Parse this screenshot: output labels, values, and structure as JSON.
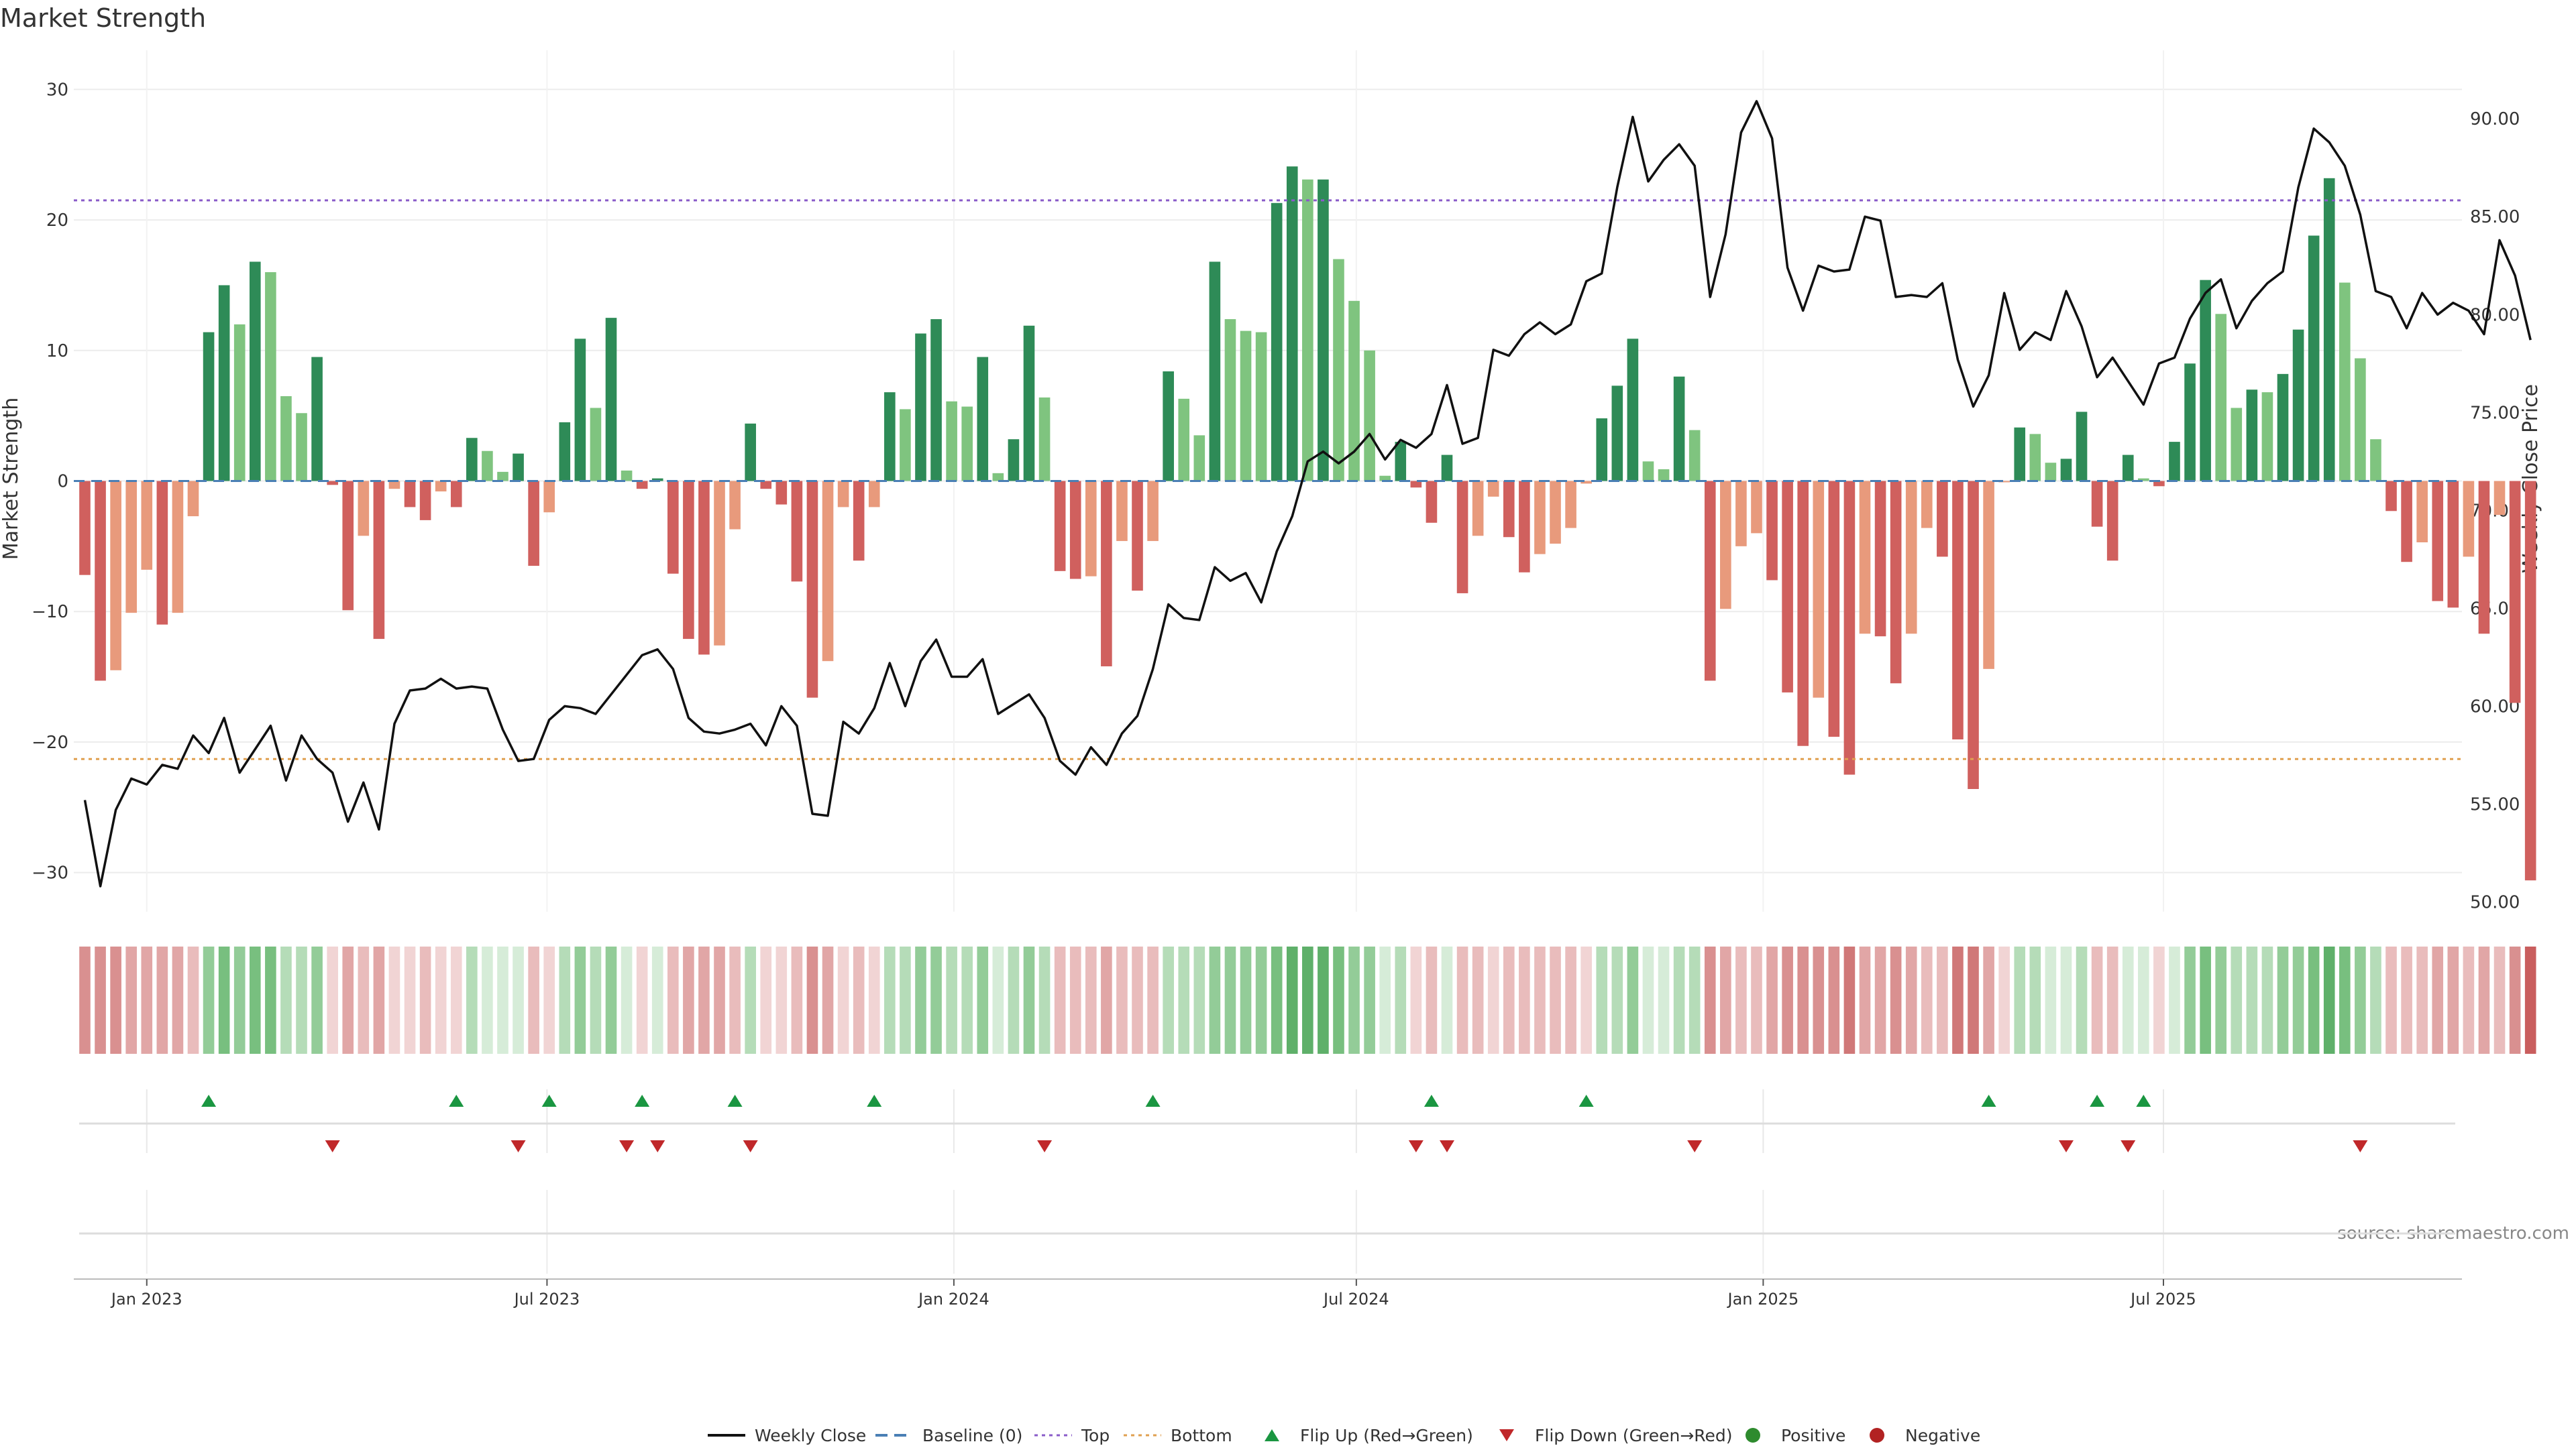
{
  "page": {
    "title": "Market Strength",
    "source_label": "source: sharemaestro.com"
  },
  "chart_data": {
    "type": "bar",
    "title": "Market Strength",
    "ylabel_left": "Market Strength",
    "ylabel_right": "Weekly Close Price",
    "y_left_lim": [
      -33,
      33
    ],
    "y_left_ticks": [
      30,
      20,
      10,
      0,
      -10,
      -20,
      -30
    ],
    "y_left_tick_labels": [
      "30",
      "20",
      "10",
      "0",
      "−10",
      "−20",
      "−30"
    ],
    "y_right_lim": [
      49.5,
      93.5
    ],
    "y_right_ticks": [
      90,
      85,
      80,
      75,
      70,
      65,
      60,
      55,
      50
    ],
    "y_right_tick_labels": [
      "90.00",
      "85.00",
      "80.00",
      "75.00",
      "70.00",
      "65.00",
      "60.00",
      "55.00",
      "50.00"
    ],
    "x_lim": [
      "2022-11-29",
      "2025-11-13"
    ],
    "x_ticks": [
      "2023-01-01",
      "2023-07-01",
      "2024-01-01",
      "2024-07-01",
      "2025-01-01",
      "2025-07-01"
    ],
    "x_tick_labels": [
      "Jan 2023",
      "Jul 2023",
      "Jan 2024",
      "Jul 2024",
      "Jan 2025",
      "Jul 2025"
    ],
    "start_week": "2022-12-04",
    "week_interval_days": 7,
    "top_line": 21.5,
    "bottom_line": -21.3,
    "grid": true,
    "legend_position": "bottom-center",
    "strength": [
      -7.2,
      -15.3,
      -14.5,
      -10.1,
      -6.8,
      -11.0,
      -10.1,
      -2.7,
      11.4,
      15.0,
      12.0,
      16.8,
      16.0,
      6.5,
      5.2,
      9.5,
      -0.3,
      -9.9,
      -4.2,
      -12.1,
      -0.6,
      -2.0,
      -3.0,
      -0.8,
      -2.0,
      3.3,
      2.3,
      0.7,
      2.1,
      -6.5,
      -2.4,
      4.5,
      10.9,
      5.6,
      12.5,
      0.8,
      -0.6,
      0.2,
      -7.1,
      -12.1,
      -13.3,
      -12.6,
      -3.7,
      4.4,
      -0.6,
      -1.8,
      -7.7,
      -16.6,
      -13.8,
      -2.0,
      -6.1,
      -2.0,
      6.8,
      5.5,
      11.3,
      12.4,
      6.1,
      5.7,
      9.5,
      0.6,
      3.2,
      11.9,
      6.4,
      -6.9,
      -7.5,
      -7.3,
      -14.2,
      -4.6,
      -8.4,
      -4.6,
      8.4,
      6.3,
      3.5,
      16.8,
      12.4,
      11.5,
      11.4,
      21.3,
      24.1,
      23.1,
      23.1,
      17.0,
      13.8,
      10.0,
      0.4,
      3.0,
      -0.5,
      -3.2,
      2.0,
      -8.6,
      -4.2,
      -1.2,
      -4.3,
      -7.0,
      -5.6,
      -4.8,
      -3.6,
      -0.2,
      4.8,
      7.3,
      10.9,
      1.5,
      0.9,
      8.0,
      3.9,
      -15.3,
      -9.8,
      -5.0,
      -4.0,
      -7.6,
      -16.2,
      -20.3,
      -16.6,
      -19.6,
      -22.5,
      -11.7,
      -11.9,
      -15.5,
      -11.7,
      -3.6,
      -5.8,
      -19.8,
      -23.6,
      -14.4,
      -0.1,
      4.1,
      3.6,
      1.4,
      1.7,
      5.3,
      -3.5,
      -6.1,
      2.0,
      0.2,
      -0.4,
      3.0,
      9.0,
      15.4,
      12.8,
      5.6,
      7.0,
      6.8,
      8.2,
      11.6,
      18.8,
      23.2,
      15.2,
      9.4,
      3.2,
      -2.3,
      -6.2,
      -4.7,
      -9.2,
      -9.7,
      -5.8,
      -11.7,
      -2.6,
      -17.0,
      -30.6
    ],
    "weekly_close": [
      55.2,
      50.8,
      54.7,
      56.3,
      56.0,
      57.0,
      56.8,
      58.5,
      57.6,
      59.4,
      56.6,
      57.8,
      59.0,
      56.2,
      58.5,
      57.3,
      56.6,
      54.1,
      56.1,
      53.7,
      59.1,
      60.8,
      60.9,
      61.4,
      60.9,
      61.0,
      60.9,
      58.8,
      57.2,
      57.3,
      59.3,
      60.0,
      59.9,
      59.6,
      60.6,
      61.6,
      62.6,
      62.9,
      61.9,
      59.4,
      58.7,
      58.6,
      58.8,
      59.1,
      58.0,
      60.0,
      59.0,
      54.5,
      54.4,
      59.2,
      58.6,
      59.9,
      62.2,
      60.0,
      62.3,
      63.4,
      61.5,
      61.5,
      62.4,
      59.6,
      60.1,
      60.6,
      59.4,
      57.2,
      56.5,
      57.9,
      57.0,
      58.6,
      59.5,
      61.9,
      65.2,
      64.5,
      64.4,
      67.1,
      66.4,
      66.8,
      65.3,
      67.9,
      69.7,
      72.5,
      73.0,
      72.4,
      73.0,
      73.9,
      72.6,
      73.6,
      73.2,
      73.9,
      76.4,
      73.4,
      73.7,
      78.2,
      77.9,
      79.0,
      79.6,
      79.0,
      79.5,
      81.7,
      82.1,
      86.5,
      90.1,
      86.8,
      87.9,
      88.7,
      87.6,
      80.9,
      84.1,
      89.3,
      90.9,
      89.0,
      82.4,
      80.2,
      82.5,
      82.2,
      82.3,
      85.0,
      84.8,
      80.9,
      81.0,
      80.9,
      81.6,
      77.7,
      75.3,
      76.9,
      81.1,
      78.2,
      79.1,
      78.7,
      81.2,
      79.4,
      76.8,
      77.8,
      76.6,
      75.4,
      77.5,
      77.8,
      79.8,
      81.1,
      81.8,
      79.3,
      80.7,
      81.6,
      82.2,
      86.5,
      89.5,
      88.8,
      87.6,
      85.1,
      81.2,
      80.9,
      79.3,
      81.1,
      80.0,
      80.6,
      80.2,
      79.0,
      83.8,
      82.0,
      78.7
    ],
    "heat_levels": [
      3,
      3,
      3,
      2,
      2,
      2,
      2,
      1,
      2,
      3,
      2,
      3,
      3,
      1,
      1,
      2,
      0,
      2,
      1,
      2,
      0,
      0,
      1,
      0,
      0,
      1,
      0,
      0,
      0,
      1,
      0,
      1,
      2,
      1,
      2,
      0,
      0,
      0,
      1,
      2,
      2,
      2,
      1,
      1,
      0,
      0,
      1,
      3,
      2,
      0,
      1,
      0,
      1,
      1,
      2,
      2,
      1,
      1,
      2,
      0,
      1,
      2,
      1,
      1,
      1,
      1,
      2,
      1,
      1,
      1,
      1,
      1,
      1,
      2,
      2,
      2,
      2,
      3,
      4,
      4,
      4,
      3,
      2,
      2,
      0,
      1,
      0,
      1,
      0,
      1,
      1,
      0,
      1,
      1,
      1,
      1,
      1,
      0,
      1,
      1,
      2,
      0,
      0,
      1,
      1,
      3,
      2,
      1,
      1,
      2,
      3,
      3,
      3,
      3,
      4,
      2,
      2,
      3,
      2,
      1,
      1,
      4,
      4,
      2,
      0,
      1,
      1,
      0,
      0,
      1,
      1,
      1,
      0,
      0,
      0,
      0,
      2,
      3,
      2,
      1,
      1,
      1,
      2,
      2,
      3,
      4,
      3,
      2,
      1,
      1,
      1,
      1,
      2,
      2,
      1,
      2,
      1,
      3,
      5
    ],
    "flip_up_weeks": [
      8,
      24,
      30,
      36,
      42,
      51,
      69,
      87,
      97,
      123,
      130,
      133
    ],
    "flip_down_weeks": [
      16,
      28,
      35,
      37,
      43,
      62,
      86,
      88,
      104,
      128,
      132,
      147
    ],
    "colors": {
      "strong_positive": "#2e8b57",
      "weak_positive": "#7fc47f",
      "strong_negative": "#d0605e",
      "weak_negative": "#e89a7c",
      "price_line": "#111111",
      "baseline": "#4a7fb5",
      "top": "#8a5cc9",
      "bottom": "#e0a050",
      "flip_up": "#1a9641",
      "flip_down": "#c0282a",
      "positive": "#2e8b2e",
      "negative": "#b22222"
    },
    "legend": [
      {
        "label": "Weekly Close",
        "marker": "line",
        "color": "#111111"
      },
      {
        "label": "Baseline (0)",
        "marker": "dash",
        "color": "#4a7fb5"
      },
      {
        "label": "Top",
        "marker": "dot",
        "color": "#8a5cc9"
      },
      {
        "label": "Bottom",
        "marker": "dot",
        "color": "#e0a050"
      },
      {
        "label": "Flip Up (Red→Green)",
        "marker": "triangle-up",
        "color": "#1a9641"
      },
      {
        "label": "Flip Down (Green→Red)",
        "marker": "triangle-down",
        "color": "#c0282a"
      },
      {
        "label": "Positive",
        "marker": "circle",
        "color": "#2e8b2e"
      },
      {
        "label": "Negative",
        "marker": "circle",
        "color": "#b22222"
      }
    ]
  }
}
